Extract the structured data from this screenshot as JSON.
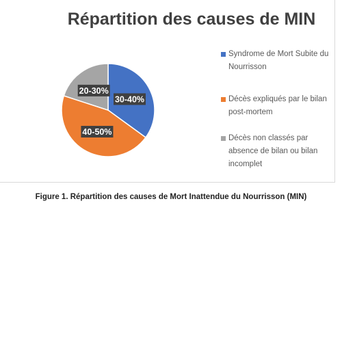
{
  "chart_data": {
    "type": "pie",
    "title": "Répartition des causes de MIN",
    "slices": [
      {
        "label": "Syndrome de Mort Subite du Nourrisson",
        "value": 35,
        "data_label": "30-40%",
        "color": "#4472c4"
      },
      {
        "label": "Décès expliqués par le bilan post-mortem",
        "value": 45,
        "data_label": "40-50%",
        "color": "#ed7d31"
      },
      {
        "label": "Décès non classés par absence de bilan ou bilan incomplet",
        "value": 20,
        "data_label": "20-30%",
        "color": "#a5a5a5"
      }
    ],
    "legend_position": "right"
  },
  "legend": {
    "lines": [
      [
        "Syndrome de Mort Subite du",
        "Nourrisson"
      ],
      [
        "Décès expliqués par le bilan",
        "post-mortem"
      ],
      [
        "Décès non classés par",
        "absence de bilan ou bilan",
        "incomplet"
      ]
    ]
  },
  "figure": {
    "caption": "Figure 1. Répartition des causes de Mort Inattendue du Nourrisson (MIN)"
  }
}
